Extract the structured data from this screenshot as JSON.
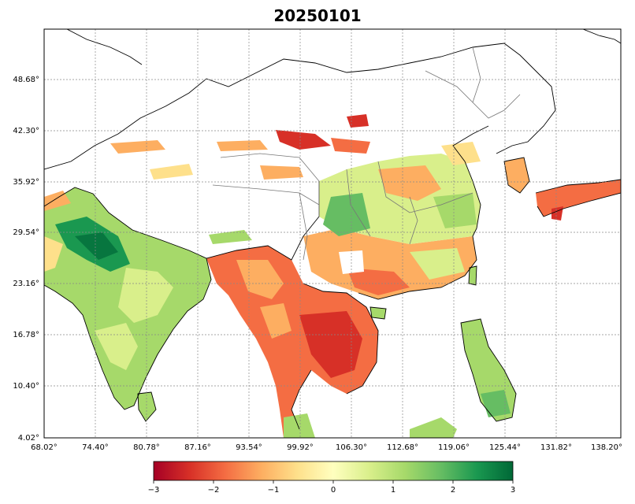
{
  "title": "20250101",
  "map_data": {
    "lon_ticks": [
      "68.02°",
      "74.40°",
      "80.78°",
      "87.16°",
      "93.54°",
      "99.92°",
      "106.30°",
      "112.68°",
      "119.06°",
      "125.44°",
      "131.82°",
      "138.20°"
    ],
    "lat_ticks": [
      "48.68°",
      "42.30°",
      "35.92°",
      "29.54°",
      "23.16°",
      "16.78°",
      "10.40°",
      "4.02°"
    ],
    "grid": true,
    "grid_style": "dotted"
  },
  "colorbar": {
    "min": -3,
    "max": 3,
    "tick_labels": [
      "−3",
      "−2",
      "−1",
      "0",
      "1",
      "2",
      "3"
    ],
    "colors": [
      "#a50026",
      "#d73027",
      "#f46d43",
      "#fdae61",
      "#fee08b",
      "#ffffbf",
      "#d9ef8b",
      "#a6d96a",
      "#66bd63",
      "#1a9850",
      "#006837"
    ]
  }
}
